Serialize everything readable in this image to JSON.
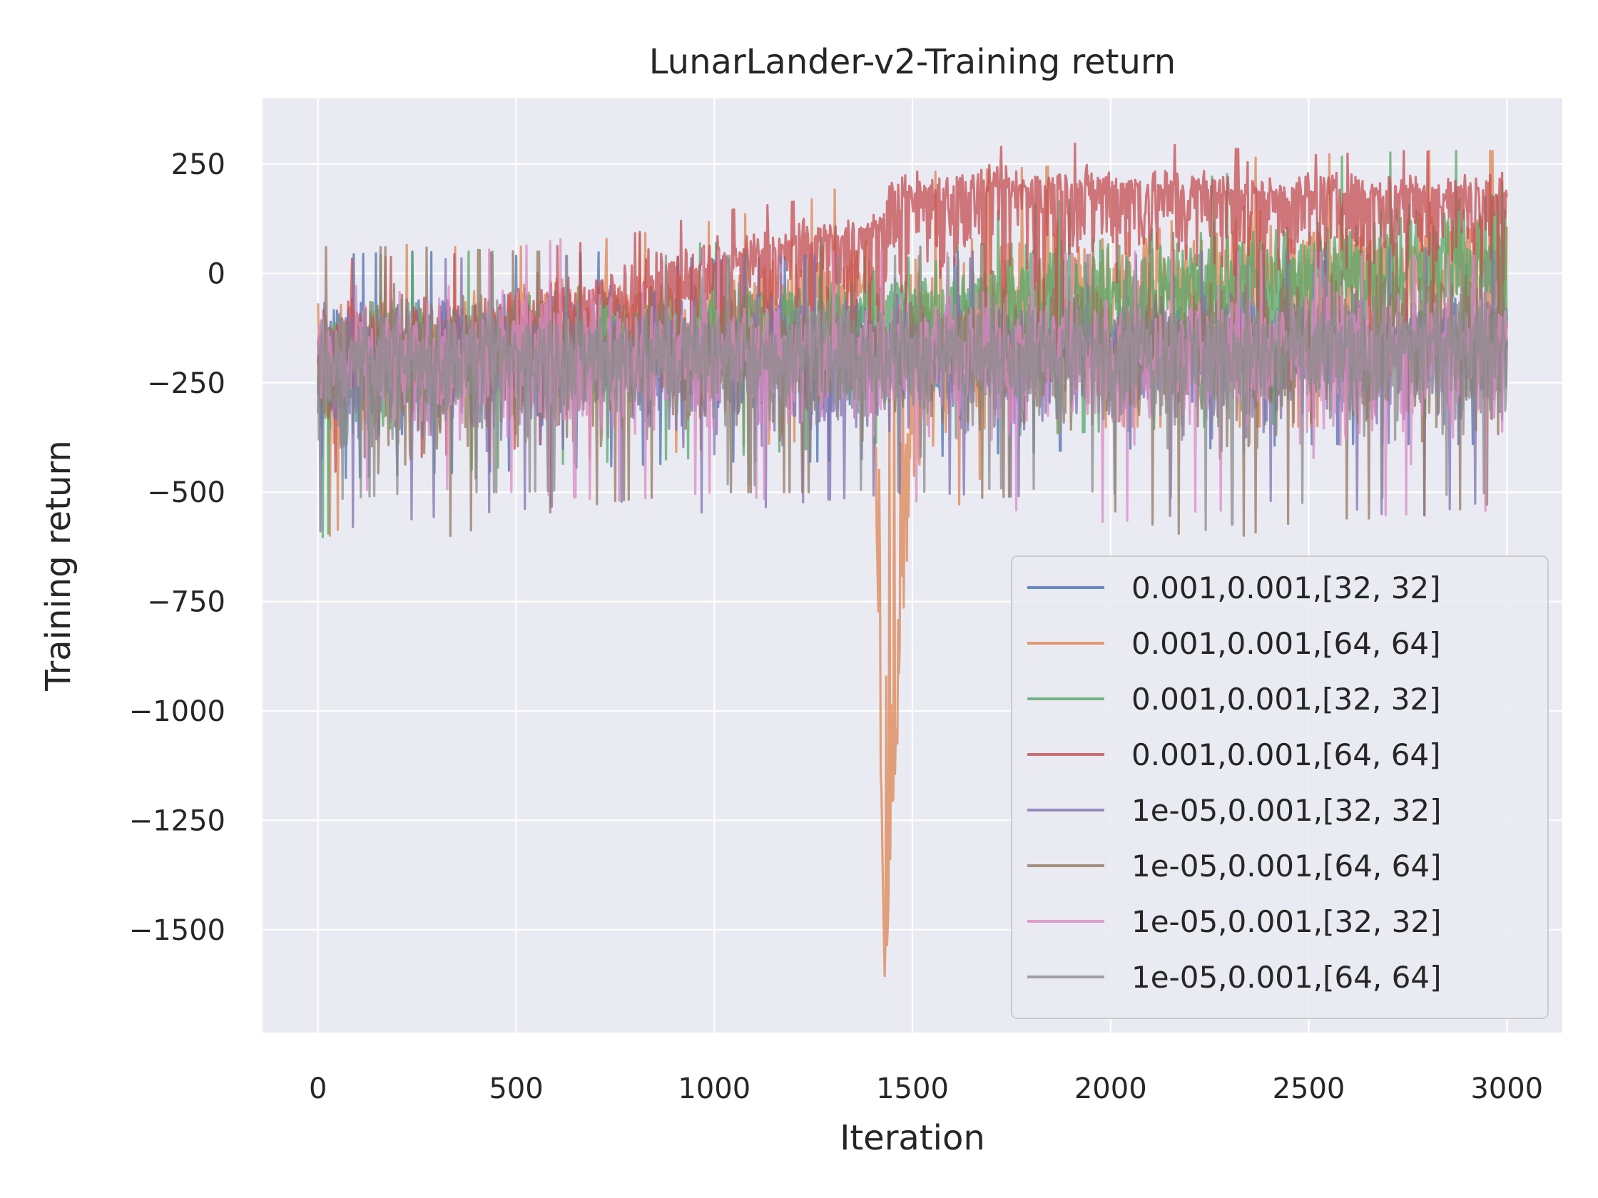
{
  "chart_data": {
    "type": "line",
    "title": "LunarLander-v2-Training return",
    "xlabel": "Iteration",
    "ylabel": "Training return",
    "xlim": [
      -140,
      3140
    ],
    "ylim": [
      -1735,
      400
    ],
    "xticks": [
      0,
      500,
      1000,
      1500,
      2000,
      2500,
      3000
    ],
    "xtick_labels": [
      "0",
      "500",
      "1000",
      "1500",
      "2000",
      "2500",
      "3000"
    ],
    "yticks": [
      250,
      0,
      -250,
      -500,
      -750,
      -1000,
      -1250,
      -1500
    ],
    "ytick_labels": [
      "250",
      "0",
      "−250",
      "−500",
      "−750",
      "−1000",
      "−1250",
      "−1500"
    ],
    "grid": true,
    "legend_position": "lower-right",
    "background": "#eaeaf2",
    "series": [
      {
        "name": "0.001,0.001,[32, 32]",
        "color": "#4c72b0",
        "x": [
          0,
          250,
          500,
          750,
          1000,
          1250,
          1500,
          1750,
          2000,
          2250,
          2500,
          2750,
          3000
        ],
        "mean": [
          -200,
          -190,
          -185,
          -180,
          -170,
          -165,
          -160,
          -150,
          -140,
          -140,
          -135,
          -130,
          -130
        ],
        "low": [
          -470,
          -460,
          -450,
          -440,
          -430,
          -430,
          -420,
          -410,
          -400,
          -400,
          -390,
          -390,
          -390
        ],
        "high": [
          40,
          50,
          40,
          50,
          30,
          40,
          40,
          30,
          30,
          30,
          30,
          20,
          20
        ]
      },
      {
        "name": "0.001,0.001,[64, 64]",
        "color": "#dd8452",
        "x": [
          0,
          250,
          500,
          750,
          1000,
          1250,
          1400,
          1430,
          1500,
          1750,
          2000,
          2250,
          2500,
          2750,
          3000
        ],
        "mean": [
          -200,
          -170,
          -140,
          -120,
          -100,
          -60,
          -30,
          -1600,
          -200,
          -80,
          -40,
          -20,
          0,
          20,
          30
        ],
        "low": [
          -620,
          -450,
          -430,
          -420,
          -400,
          -380,
          -350,
          -1650,
          -660,
          -380,
          -350,
          -350,
          -350,
          -340,
          -330
        ],
        "high": [
          110,
          60,
          60,
          80,
          120,
          170,
          230,
          -300,
          230,
          240,
          250,
          260,
          270,
          280,
          280
        ]
      },
      {
        "name": "0.001,0.001,[32, 32]",
        "color": "#55a868",
        "x": [
          0,
          250,
          500,
          750,
          1000,
          1250,
          1500,
          1750,
          2000,
          2250,
          2500,
          2750,
          3000
        ],
        "mean": [
          -210,
          -180,
          -160,
          -140,
          -120,
          -100,
          -80,
          -60,
          -40,
          -20,
          0,
          20,
          30
        ],
        "low": [
          -610,
          -460,
          -440,
          -430,
          -420,
          -400,
          -380,
          -370,
          -360,
          -350,
          -340,
          -330,
          -330
        ],
        "high": [
          30,
          50,
          50,
          60,
          70,
          80,
          100,
          150,
          180,
          220,
          260,
          280,
          280
        ]
      },
      {
        "name": "0.001,0.001,[64, 64]",
        "color": "#c44e52",
        "x": [
          0,
          250,
          500,
          750,
          1000,
          1250,
          1400,
          1450,
          1500,
          1750,
          2000,
          2250,
          2500,
          2750,
          3000
        ],
        "mean": [
          -190,
          -150,
          -110,
          -60,
          10,
          70,
          90,
          160,
          180,
          190,
          190,
          180,
          180,
          180,
          170
        ],
        "low": [
          -460,
          -420,
          -400,
          -360,
          -320,
          -280,
          -250,
          -200,
          -180,
          -170,
          -150,
          -150,
          -160,
          -160,
          -170
        ],
        "high": [
          30,
          40,
          50,
          80,
          140,
          170,
          180,
          290,
          280,
          290,
          300,
          290,
          270,
          280,
          270
        ]
      },
      {
        "name": "1e-05,0.001,[32, 32]",
        "color": "#8172b3",
        "x": [
          0,
          250,
          500,
          750,
          1000,
          1250,
          1500,
          1750,
          2000,
          2250,
          2500,
          2750,
          3000
        ],
        "mean": [
          -200,
          -200,
          -195,
          -195,
          -190,
          -190,
          -185,
          -185,
          -180,
          -180,
          -180,
          -175,
          -175
        ],
        "low": [
          -590,
          -560,
          -540,
          -520,
          -550,
          -520,
          -500,
          -510,
          -500,
          -520,
          -520,
          -560,
          -510
        ],
        "high": [
          30,
          30,
          40,
          40,
          40,
          40,
          50,
          50,
          40,
          50,
          50,
          60,
          50
        ]
      },
      {
        "name": "1e-05,0.001,[64, 64]",
        "color": "#937860",
        "x": [
          0,
          250,
          500,
          750,
          1000,
          1250,
          1500,
          1750,
          2000,
          2250,
          2500,
          2750,
          3000
        ],
        "mean": [
          -200,
          -195,
          -190,
          -185,
          -180,
          -175,
          -170,
          -165,
          -160,
          -150,
          -140,
          -130,
          -120
        ],
        "low": [
          -560,
          -620,
          -560,
          -520,
          -500,
          -500,
          -520,
          -510,
          -540,
          -620,
          -560,
          -560,
          -520
        ],
        "high": [
          60,
          60,
          50,
          50,
          50,
          60,
          60,
          70,
          80,
          100,
          120,
          150,
          200
        ]
      },
      {
        "name": "1e-05,0.001,[32, 32]",
        "color": "#da8bc3",
        "x": [
          0,
          250,
          500,
          750,
          1000,
          1250,
          1500,
          1750,
          2000,
          2250,
          2500,
          2750,
          3000
        ],
        "mean": [
          -200,
          -195,
          -190,
          -185,
          -180,
          -175,
          -175,
          -170,
          -170,
          -170,
          -165,
          -165,
          -160
        ],
        "low": [
          -500,
          -490,
          -500,
          -520,
          -500,
          -530,
          -520,
          -540,
          -570,
          -540,
          -560,
          -550,
          -540
        ],
        "high": [
          40,
          40,
          60,
          100,
          50,
          50,
          50,
          40,
          50,
          50,
          50,
          40,
          40
        ]
      },
      {
        "name": "1e-05,0.001,[64, 64]",
        "color": "#8c8c8c",
        "x": [
          0,
          250,
          500,
          750,
          1000,
          1250,
          1500,
          1750,
          2000,
          2250,
          2500,
          2750,
          3000
        ],
        "mean": [
          -200,
          -195,
          -190,
          -185,
          -185,
          -180,
          -180,
          -175,
          -175,
          -170,
          -170,
          -165,
          -165
        ],
        "low": [
          -520,
          -500,
          -500,
          -490,
          -480,
          -490,
          -500,
          -490,
          -500,
          -590,
          -520,
          -510,
          -500
        ],
        "high": [
          60,
          50,
          40,
          40,
          40,
          40,
          40,
          30,
          30,
          30,
          30,
          30,
          30
        ]
      }
    ]
  }
}
